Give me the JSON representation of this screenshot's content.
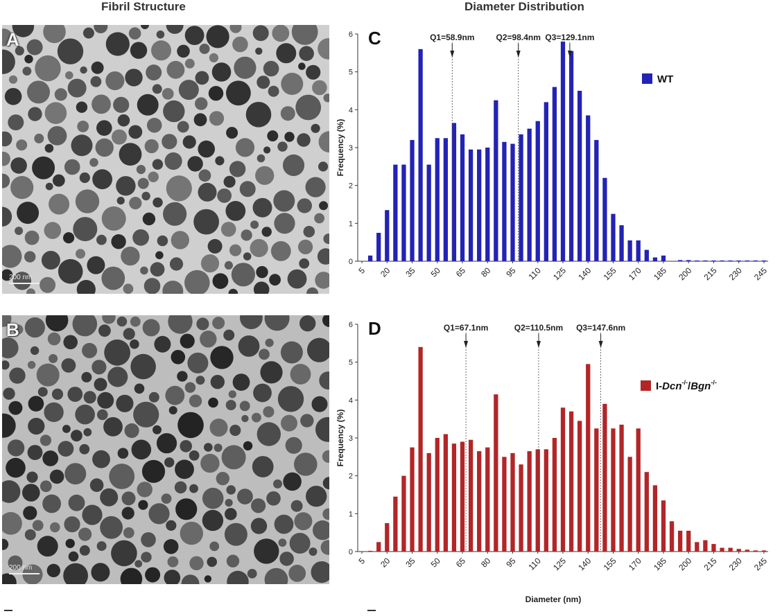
{
  "headings": {
    "left": "Fibril Structure",
    "right": "Diameter Distribution"
  },
  "micrographs": [
    {
      "panel": "A",
      "scale_label": "200 nm",
      "tone": "light"
    },
    {
      "panel": "B",
      "scale_label": "200 nm",
      "tone": "dark"
    }
  ],
  "chart_data": [
    {
      "type": "bar",
      "panel": "C",
      "ylabel": "Frequency (%)",
      "xlabel": "",
      "ylim": [
        0,
        6
      ],
      "yticks": [
        0,
        1,
        2,
        3,
        4,
        5,
        6
      ],
      "x_tick_labels": [
        "5",
        "20",
        "35",
        "50",
        "65",
        "80",
        "95",
        "110",
        "125",
        "140",
        "155",
        "170",
        "185",
        "200",
        "215",
        "230",
        "245"
      ],
      "bin_start": 5,
      "bin_width": 5,
      "color": "#2323b5",
      "legend": {
        "label": "WT",
        "position": "top-right"
      },
      "quartiles": [
        {
          "label": "Q1=58.9nm",
          "value": 58.9
        },
        {
          "label": "Q2=98.4nm",
          "value": 98.4
        },
        {
          "label": "Q3=129.1nm",
          "value": 129.1
        }
      ],
      "series": [
        {
          "name": "WT",
          "x": [
            5,
            10,
            15,
            20,
            25,
            30,
            35,
            40,
            45,
            50,
            55,
            60,
            65,
            70,
            75,
            80,
            85,
            90,
            95,
            100,
            105,
            110,
            115,
            120,
            125,
            130,
            135,
            140,
            145,
            150,
            155,
            160,
            165,
            170,
            175,
            180,
            185,
            190,
            195,
            200,
            205,
            210,
            215,
            220,
            225,
            230,
            235,
            240,
            245
          ],
          "values": [
            0,
            0.15,
            0.75,
            1.35,
            2.55,
            2.55,
            3.2,
            5.6,
            2.55,
            3.25,
            3.25,
            3.65,
            3.35,
            2.95,
            2.95,
            3.0,
            4.25,
            3.15,
            3.1,
            3.35,
            3.5,
            3.7,
            4.2,
            4.6,
            5.8,
            5.55,
            4.5,
            3.85,
            3.2,
            2.2,
            1.25,
            0.95,
            0.55,
            0.55,
            0.3,
            0.1,
            0.15,
            0,
            0.03,
            0.03,
            0.02,
            0.02,
            0.02,
            0.02,
            0.02,
            0.02,
            0.02,
            0.02,
            0.02
          ]
        }
      ]
    },
    {
      "type": "bar",
      "panel": "D",
      "ylabel": "Frequency (%)",
      "xlabel": "Diameter (nm)",
      "ylim": [
        0,
        6
      ],
      "yticks": [
        0,
        1,
        2,
        3,
        4,
        5,
        6
      ],
      "x_tick_labels": [
        "5",
        "20",
        "35",
        "50",
        "65",
        "80",
        "95",
        "110",
        "125",
        "140",
        "155",
        "170",
        "185",
        "200",
        "215",
        "230",
        "245"
      ],
      "bin_start": 5,
      "bin_width": 5,
      "color": "#b22628",
      "legend": {
        "label_plain": "I-",
        "label_italic_1": "Dcn",
        "sup_1": "-/-",
        "label_slash": "/",
        "label_italic_2": "Bgn",
        "sup_2": "-/-",
        "position": "right"
      },
      "quartiles": [
        {
          "label": "Q1=67.1nm",
          "value": 67.1
        },
        {
          "label": "Q2=110.5nm",
          "value": 110.5
        },
        {
          "label": "Q3=147.6nm",
          "value": 147.6
        }
      ],
      "series": [
        {
          "name": "I-Dcn-/-/Bgn-/-",
          "x": [
            5,
            10,
            15,
            20,
            25,
            30,
            35,
            40,
            45,
            50,
            55,
            60,
            65,
            70,
            75,
            80,
            85,
            90,
            95,
            100,
            105,
            110,
            115,
            120,
            125,
            130,
            135,
            140,
            145,
            150,
            155,
            160,
            165,
            170,
            175,
            180,
            185,
            190,
            195,
            200,
            205,
            210,
            215,
            220,
            225,
            230,
            235,
            240,
            245
          ],
          "values": [
            0,
            0.02,
            0.25,
            0.75,
            1.45,
            2.0,
            2.75,
            5.4,
            2.6,
            3.0,
            3.1,
            2.85,
            2.9,
            2.95,
            2.65,
            2.75,
            4.15,
            2.5,
            2.6,
            2.3,
            2.65,
            2.7,
            2.7,
            3.0,
            3.8,
            3.7,
            3.45,
            4.95,
            3.25,
            3.9,
            3.25,
            3.35,
            2.5,
            3.25,
            2.1,
            1.75,
            1.35,
            0.8,
            0.55,
            0.55,
            0.25,
            0.3,
            0.2,
            0.1,
            0.1,
            0.07,
            0.05,
            0.03,
            0.03
          ]
        }
      ]
    }
  ]
}
